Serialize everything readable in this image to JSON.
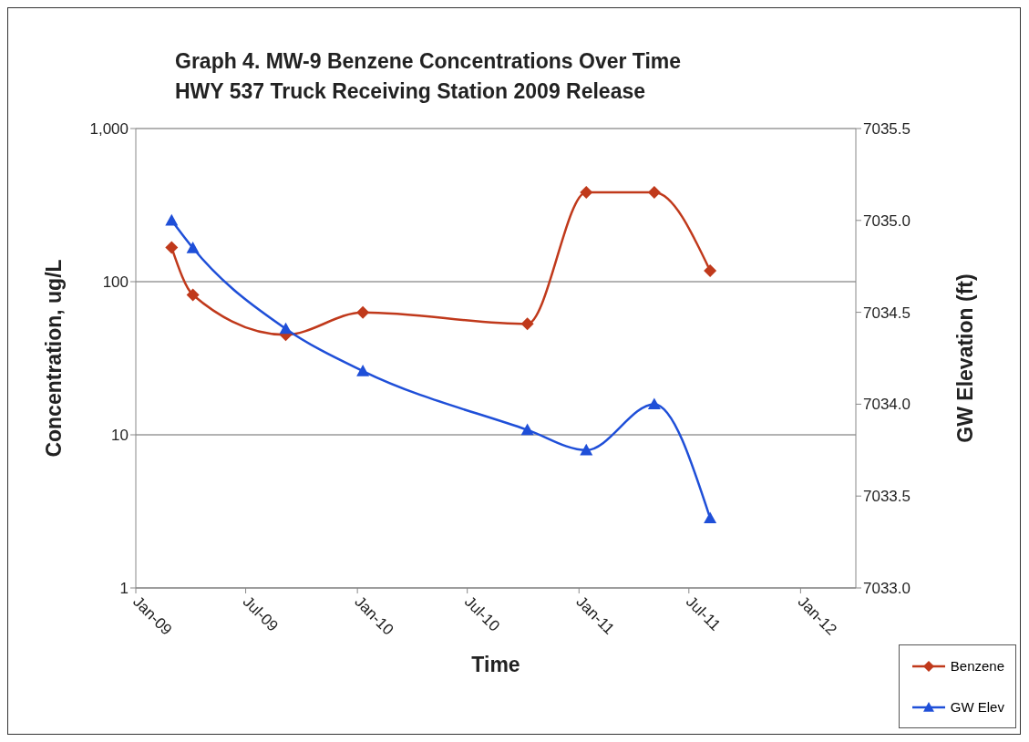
{
  "chart_data": {
    "type": "line",
    "title": "Graph 4.  MW-9 Benzene Concentrations Over Time",
    "subtitle": "HWY 537 Truck Receiving Station 2009 Release",
    "xlabel": "Time",
    "ylabel": "Concentration, ug/L",
    "y2label": "GW Elevation (ft)",
    "x": [
      "2009-03-01",
      "2009-04-05",
      "2009-09-05",
      "2010-01-10",
      "2010-10-08",
      "2011-01-13",
      "2011-05-05",
      "2011-08-05"
    ],
    "series": [
      {
        "name": "Benzene",
        "color": "#c0391b",
        "marker": "diamond",
        "values": [
          167,
          82,
          45,
          63,
          53,
          383,
          383,
          118
        ]
      },
      {
        "name": "GW Elev",
        "color": "#1f4fd8",
        "marker": "triangle",
        "axis": "y2",
        "values": [
          7035.0,
          7034.85,
          7034.41,
          7034.18,
          7033.86,
          7033.75,
          7034.0,
          7033.38
        ]
      }
    ],
    "xlim": [
      "2009-01-01",
      "2012-04-01"
    ],
    "xticks": [
      {
        "value": "2009-01-01",
        "label": "Jan-09"
      },
      {
        "value": "2009-07-01",
        "label": "Jul-09"
      },
      {
        "value": "2010-01-01",
        "label": "Jan-10"
      },
      {
        "value": "2010-07-01",
        "label": "Jul-10"
      },
      {
        "value": "2011-01-01",
        "label": "Jan-11"
      },
      {
        "value": "2011-07-01",
        "label": "Jul-11"
      },
      {
        "value": "2012-01-01",
        "label": "Jan-12"
      }
    ],
    "ylim": [
      1,
      1000
    ],
    "yticks": [
      1,
      10,
      100,
      {
        "value": 1000,
        "label": "1,000"
      }
    ],
    "y2lim": [
      7033.0,
      7035.5
    ],
    "y2ticks": [
      {
        "value": 7033.0,
        "label": "7033.0"
      },
      {
        "value": 7033.5,
        "label": "7033.5"
      },
      {
        "value": 7034.0,
        "label": "7034.0"
      },
      {
        "value": 7034.5,
        "label": "7034.5"
      },
      {
        "value": 7035.0,
        "label": "7035.0"
      },
      {
        "value": 7035.5,
        "label": "7035.5"
      }
    ],
    "log": "y",
    "grid": "y",
    "legend": "bottom right",
    "line_style": "solid"
  }
}
